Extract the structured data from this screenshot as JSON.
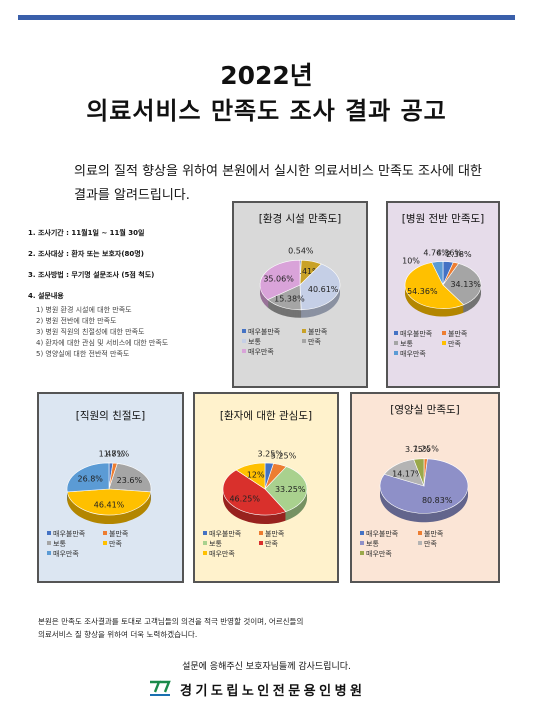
{
  "header": {
    "year_title": "2022년",
    "title": "의료서비스 만족도 조사 결과 공고",
    "intro_line1": "의료의 질적 향상을 위하여 본원에서 실시한 의료서비스 만족도 조사에 대한",
    "intro_line2": "결과를 알려드립니다."
  },
  "survey_info": {
    "period": "1. 조사기간 : 11월1일 ~ 11월 30일",
    "target": "2. 조사대상 : 환자 또는 보호자(80명)",
    "method": "3. 조사방법 : 무기명 설문조사 (5점 척도)",
    "contents_title": "4. 설문내용",
    "contents": [
      "1) 병원 환경 시설에 대한 만족도",
      "2) 병원 전반에 대한 만족도",
      "3) 병원 직원의 친절성에 대한 만족도",
      "4) 환자에 대한 관심 및 서비스에 대한 만족도",
      "5) 영양실에 대한 전반적 만족도"
    ]
  },
  "colors": {
    "very_unsatisfied": "#4472c4",
    "unsatisfied": "#ed7d31",
    "neutral": "#a5a5a5",
    "satisfied": "#ffc000",
    "very_satisfied": "#5b9bd5"
  },
  "chart_data": [
    {
      "type": "pie",
      "title": "[환경 시설  만족도]",
      "background": "#d9d9d9",
      "series": [
        {
          "name": "매우불만족",
          "value": 0.54,
          "label": "0.54%",
          "color": "#4472c4"
        },
        {
          "name": "불만족",
          "value": 8.41,
          "label": "8.41%",
          "color": "#c9a227"
        },
        {
          "name": "보통",
          "value": 40.61,
          "label": "40.61%",
          "color": "#c5cfe6"
        },
        {
          "name": "만족",
          "value": 15.38,
          "label": "15.38%",
          "color": "#a5a5a5"
        },
        {
          "name": "매우만족",
          "value": 35.06,
          "label": "35.06%",
          "color": "#d9a3d9"
        }
      ]
    },
    {
      "type": "pie",
      "title": "[병원 전반 만족도]",
      "background": "#e6dcea",
      "series": [
        {
          "name": "매우불만족",
          "value": 4.36,
          "label": "4.36%",
          "color": "#4472c4"
        },
        {
          "name": "불만족",
          "value": 2.38,
          "label": "2.38%",
          "color": "#ed7d31"
        },
        {
          "name": "보통",
          "value": 34.13,
          "label": "34.13%",
          "color": "#a5a5a5"
        },
        {
          "name": "만족",
          "value": 54.36,
          "label": "54.36%",
          "color": "#ffc000"
        },
        {
          "name": "매우만족",
          "value": 4.76,
          "label": "4.76%",
          "color": "#5b9bd5"
        }
      ],
      "extra_label": "10%"
    },
    {
      "type": "pie",
      "title": "[직원의 친절도]",
      "background": "#dce6f2",
      "series": [
        {
          "name": "매우불만족",
          "value": 1.48,
          "label": "1.48%",
          "color": "#4472c4"
        },
        {
          "name": "불만족",
          "value": 1.71,
          "label": "1.71%",
          "color": "#ed7d31"
        },
        {
          "name": "보통",
          "value": 23.6,
          "label": "23.6%",
          "color": "#a5a5a5"
        },
        {
          "name": "만족",
          "value": 46.41,
          "label": "46.41%",
          "color": "#ffc000"
        },
        {
          "name": "매우만족",
          "value": 26.8,
          "label": "26.8%",
          "color": "#5b9bd5"
        }
      ]
    },
    {
      "type": "pie",
      "title": "[환자에 대한 관심도]",
      "background": "#fff2cc",
      "series": [
        {
          "name": "매우불만족",
          "value": 3.25,
          "label": "3.25%",
          "color": "#4472c4"
        },
        {
          "name": "불만족",
          "value": 5.25,
          "label": "5.25%",
          "color": "#ed7d31"
        },
        {
          "name": "보통",
          "value": 33.25,
          "label": "33.25%",
          "color": "#a9d18e"
        },
        {
          "name": "만족",
          "value": 46.25,
          "label": "46.25%",
          "color": "#d9302c"
        },
        {
          "name": "매우만족",
          "value": 12,
          "label": "12%",
          "color": "#ffc000"
        }
      ]
    },
    {
      "type": "pie",
      "title": "[영양실 만족도]",
      "background": "#fbe5d6",
      "series": [
        {
          "name": "매우불만족",
          "value": 0.0,
          "label": "",
          "color": "#4472c4"
        },
        {
          "name": "불만족",
          "value": 1.25,
          "label": "1.25%",
          "color": "#ed7d31"
        },
        {
          "name": "보통",
          "value": 80.83,
          "label": "80.83%",
          "color": "#8e90c8"
        },
        {
          "name": "만족",
          "value": 14.17,
          "label": "14.17%",
          "color": "#b4b4b4"
        },
        {
          "name": "매우만족",
          "value": 3.75,
          "label": "3.75%",
          "color": "#9aa84a"
        }
      ]
    }
  ],
  "footer": {
    "line1": "본원은 만족도 조사결과를 토대로 고객님들의 의견을 적극 반영할 것이며, 어르신들의",
    "line2": "의료서비스 질 향상을 위하여 더욱 노력하겠습니다.",
    "thanks": "설문에 응해주신 보호자님들께 감사드립니다.",
    "hospital_name": "경기도립노인전문용인병원"
  }
}
